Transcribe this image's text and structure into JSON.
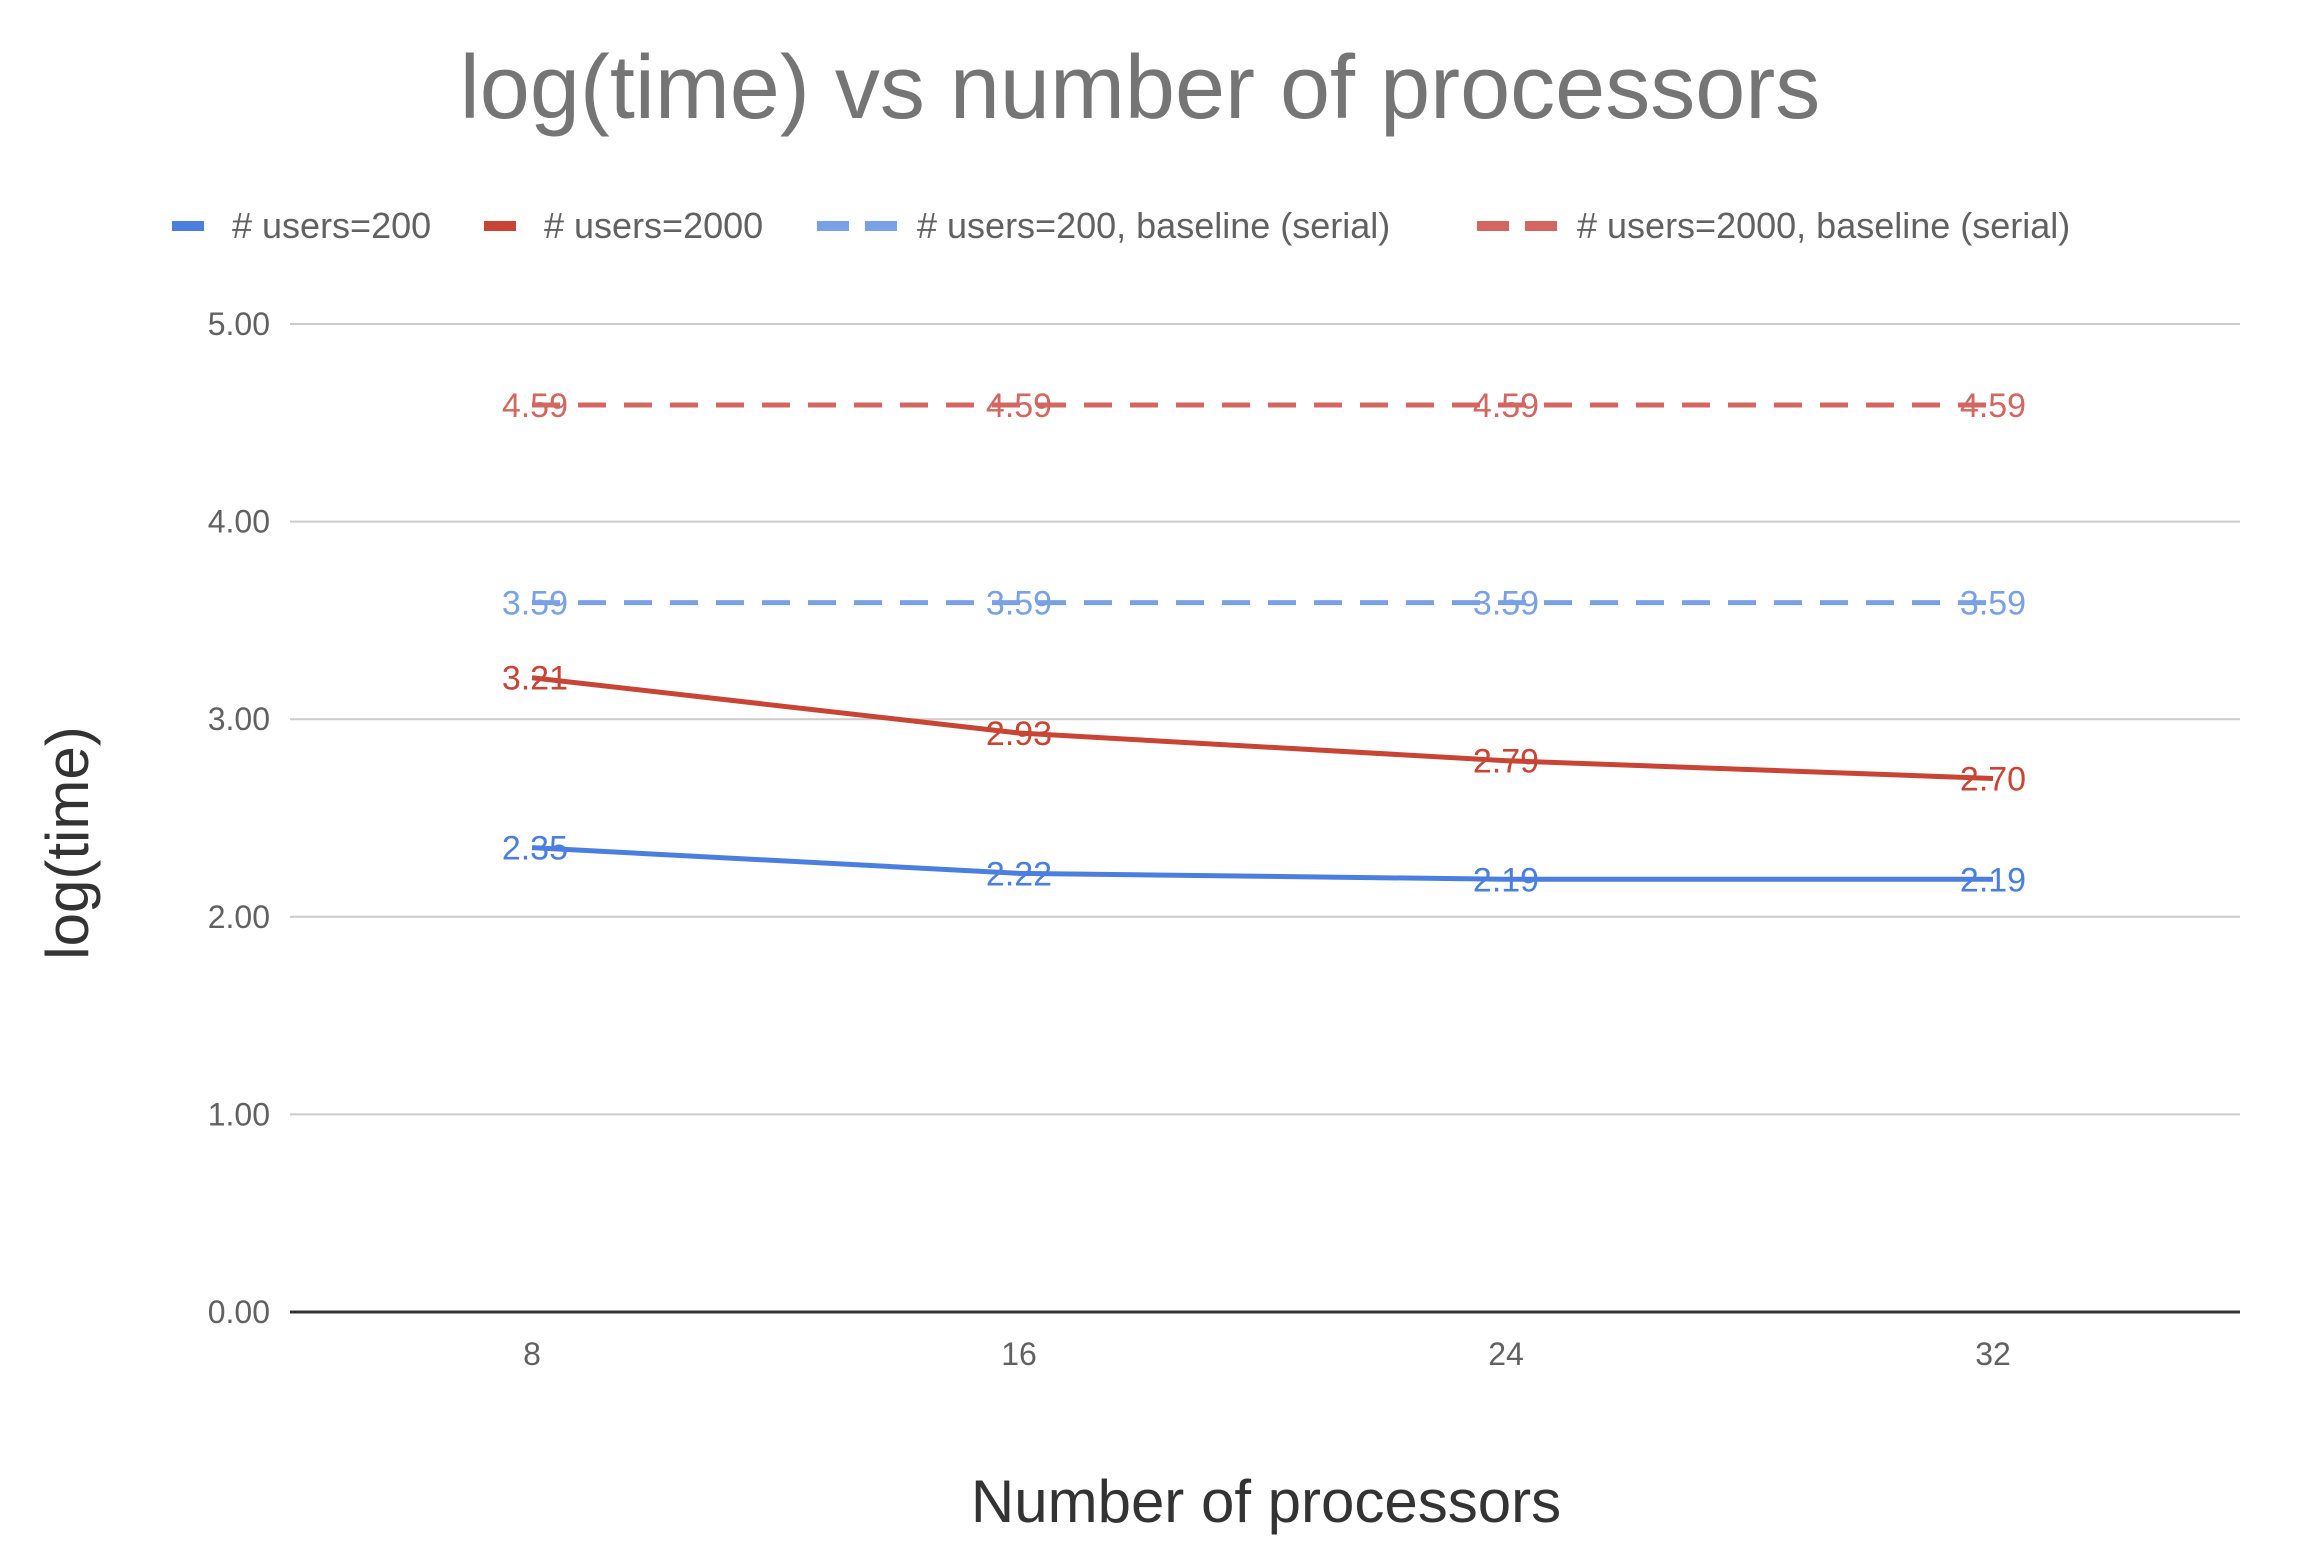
{
  "chart_data": {
    "type": "line",
    "title": "log(time) vs number of processors",
    "xlabel": "Number of processors",
    "ylabel": "log(time)",
    "categories": [
      "8",
      "16",
      "24",
      "32"
    ],
    "ylim": [
      0,
      5
    ],
    "yticks": [
      "0.00",
      "1.00",
      "2.00",
      "3.00",
      "4.00",
      "5.00"
    ],
    "grid": true,
    "legend_position": "top",
    "series": [
      {
        "name": "# users=200",
        "values": [
          2.35,
          2.22,
          2.19,
          2.19
        ],
        "labels": [
          "2.35",
          "2.22",
          "2.19",
          "2.19"
        ],
        "color": "#4a7fe0",
        "style": "solid"
      },
      {
        "name": "# users=2000",
        "values": [
          3.21,
          2.93,
          2.79,
          2.7
        ],
        "labels": [
          "3.21",
          "2.93",
          "2.79",
          "2.70"
        ],
        "color": "#c84434",
        "style": "solid"
      },
      {
        "name": "# users=200, baseline (serial)",
        "values": [
          3.59,
          3.59,
          3.59,
          3.59
        ],
        "labels": [
          "3.59",
          "3.59",
          "3.59",
          "3.59"
        ],
        "color": "#7aa0e6",
        "style": "dashed"
      },
      {
        "name": "# users=2000, baseline (serial)",
        "values": [
          4.59,
          4.59,
          4.59,
          4.59
        ],
        "labels": [
          "4.59",
          "4.59",
          "4.59",
          "4.59"
        ],
        "color": "#d26762",
        "style": "dashed"
      }
    ]
  }
}
